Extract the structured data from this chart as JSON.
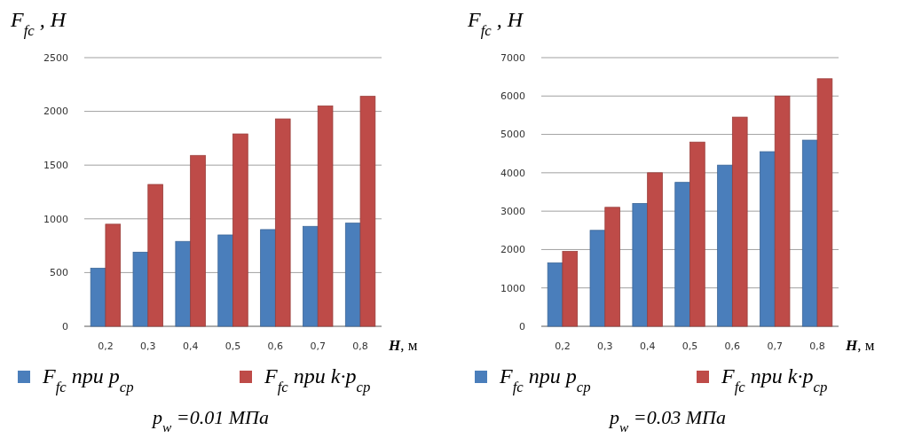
{
  "chart_data": [
    {
      "type": "bar",
      "title": "p$_{w}$ =0.01 МПа",
      "xlabel": "H, м",
      "ylabel": "F$_{fc}$, H",
      "categories": [
        "0,2",
        "0,3",
        "0,4",
        "0,5",
        "0,6",
        "0,7",
        "0,8"
      ],
      "series": [
        {
          "name": "F$_{fc}$ при p$_{ср}$",
          "color": "#4a7ebb",
          "values": [
            540,
            690,
            790,
            850,
            900,
            930,
            960
          ]
        },
        {
          "name": "F$_{fc}$ при k·p$_{ср}$",
          "color": "#be4b48",
          "values": [
            950,
            1320,
            1590,
            1790,
            1930,
            2050,
            2140
          ]
        }
      ],
      "ylim": [
        0,
        2500
      ],
      "yticks": [
        0,
        500,
        1000,
        1500,
        2000,
        2500
      ],
      "grid": "y",
      "legend": "bottom"
    },
    {
      "type": "bar",
      "title": "p$_{w}$ =0.03 МПа",
      "xlabel": "H, м",
      "ylabel": "F$_{fc}$, H",
      "categories": [
        "0,2",
        "0,3",
        "0,4",
        "0,5",
        "0,6",
        "0,7",
        "0,8"
      ],
      "series": [
        {
          "name": "F$_{fc}$ при p$_{ср}$",
          "color": "#4a7ebb",
          "values": [
            1650,
            2500,
            3200,
            3750,
            4200,
            4550,
            4850
          ]
        },
        {
          "name": "F$_{fc}$ при k·p$_{ср}$",
          "color": "#be4b48",
          "values": [
            1950,
            3100,
            4000,
            4800,
            5450,
            6000,
            6450
          ]
        }
      ],
      "ylim": [
        0,
        7000
      ],
      "yticks": [
        0,
        1000,
        2000,
        3000,
        4000,
        5000,
        6000,
        7000
      ],
      "grid": "y",
      "legend": "bottom"
    }
  ]
}
